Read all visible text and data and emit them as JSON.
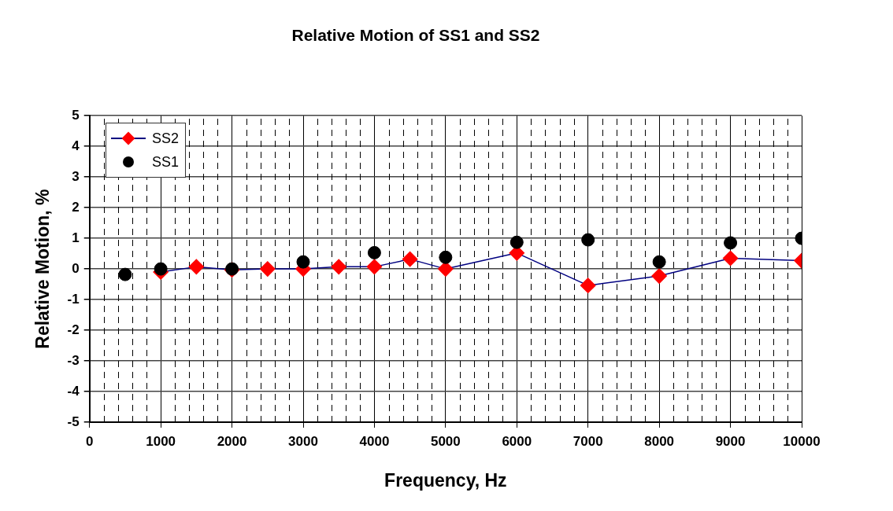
{
  "chart_data": {
    "type": "line",
    "title": "Relative Motion of SS1 and SS2",
    "xlabel": "Frequency, Hz",
    "ylabel": "Relative Motion, %",
    "xlim": [
      0,
      10000
    ],
    "xticks": [
      0,
      {
        "value": 200,
        "label": null
      },
      {
        "value": 400,
        "label": null
      },
      {
        "value": 600,
        "label": null
      },
      {
        "value": 800,
        "label": null
      },
      1000,
      {
        "value": 1200,
        "label": null
      },
      {
        "value": 1400,
        "label": null
      },
      {
        "value": 1600,
        "label": null
      },
      {
        "value": 1800,
        "label": null
      },
      2000,
      {
        "value": 2200,
        "label": null
      },
      {
        "value": 2400,
        "label": null
      },
      {
        "value": 2600,
        "label": null
      },
      {
        "value": 2800,
        "label": null
      },
      3000,
      {
        "value": 3200,
        "label": null
      },
      {
        "value": 3400,
        "label": null
      },
      {
        "value": 3600,
        "label": null
      },
      {
        "value": 3800,
        "label": null
      },
      4000,
      {
        "value": 4200,
        "label": null
      },
      {
        "value": 4400,
        "label": null
      },
      {
        "value": 4600,
        "label": null
      },
      {
        "value": 4800,
        "label": null
      },
      5000,
      {
        "value": 5200,
        "label": null
      },
      {
        "value": 5400,
        "label": null
      },
      {
        "value": 5600,
        "label": null
      },
      {
        "value": 5800,
        "label": null
      },
      6000,
      {
        "value": 6200,
        "label": null
      },
      {
        "value": 6400,
        "label": null
      },
      {
        "value": 6600,
        "label": null
      },
      {
        "value": 6800,
        "label": null
      },
      7000,
      {
        "value": 7200,
        "label": null
      },
      {
        "value": 7400,
        "label": null
      },
      {
        "value": 7600,
        "label": null
      },
      {
        "value": 7800,
        "label": null
      },
      8000,
      {
        "value": 8200,
        "label": null
      },
      {
        "value": 8400,
        "label": null
      },
      {
        "value": 8600,
        "label": null
      },
      {
        "value": 8800,
        "label": null
      },
      9000,
      {
        "value": 9200,
        "label": null
      },
      {
        "value": 9400,
        "label": null
      },
      {
        "value": 9600,
        "label": null
      },
      {
        "value": 9800,
        "label": null
      },
      10000
    ],
    "ylim": [
      -5,
      5
    ],
    "yticks": [
      -5,
      -4,
      -3,
      -2,
      -1,
      0,
      1,
      2,
      3,
      4,
      5
    ],
    "grid": true,
    "legend": "top left",
    "series": [
      {
        "name": "SS2",
        "color": "#ff0000",
        "marker": "diamond",
        "x": [
          1000,
          1500,
          2000,
          2500,
          3000,
          3500,
          4000,
          4500,
          5000,
          6000,
          7000,
          8000,
          9000,
          10000
        ],
        "values": [
          -0.1,
          0.07,
          -0.03,
          0,
          0,
          0.07,
          0.07,
          0.32,
          0,
          0.52,
          -0.54,
          -0.23,
          0.35,
          0.27
        ]
      },
      {
        "name": "SS1",
        "type": "scatter",
        "color": "#000000",
        "marker": "circle",
        "x": [
          500,
          1000,
          2000,
          3000,
          4000,
          5000,
          6000,
          7000,
          8000,
          9000,
          10000
        ],
        "values": [
          -0.18,
          0,
          0,
          0.23,
          0.53,
          0.38,
          0.87,
          0.95,
          0.23,
          0.85,
          1.0
        ]
      }
    ]
  }
}
